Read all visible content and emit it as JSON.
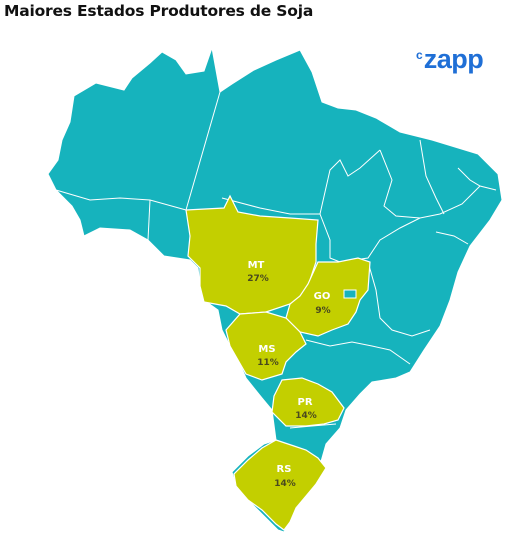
{
  "title": "Maiores Estados Produtores de Soja",
  "logo": {
    "prefix": "c",
    "word": "zapp"
  },
  "colors": {
    "base": "#16b3bd",
    "highlight": "#c3cf00",
    "border": "#ffffff",
    "logo": "#1f6fd6"
  },
  "states": [
    {
      "code": "MT",
      "value": "27%"
    },
    {
      "code": "GO",
      "value": "9%"
    },
    {
      "code": "MS",
      "value": "11%"
    },
    {
      "code": "PR",
      "value": "14%"
    },
    {
      "code": "RS",
      "value": "14%"
    }
  ]
}
